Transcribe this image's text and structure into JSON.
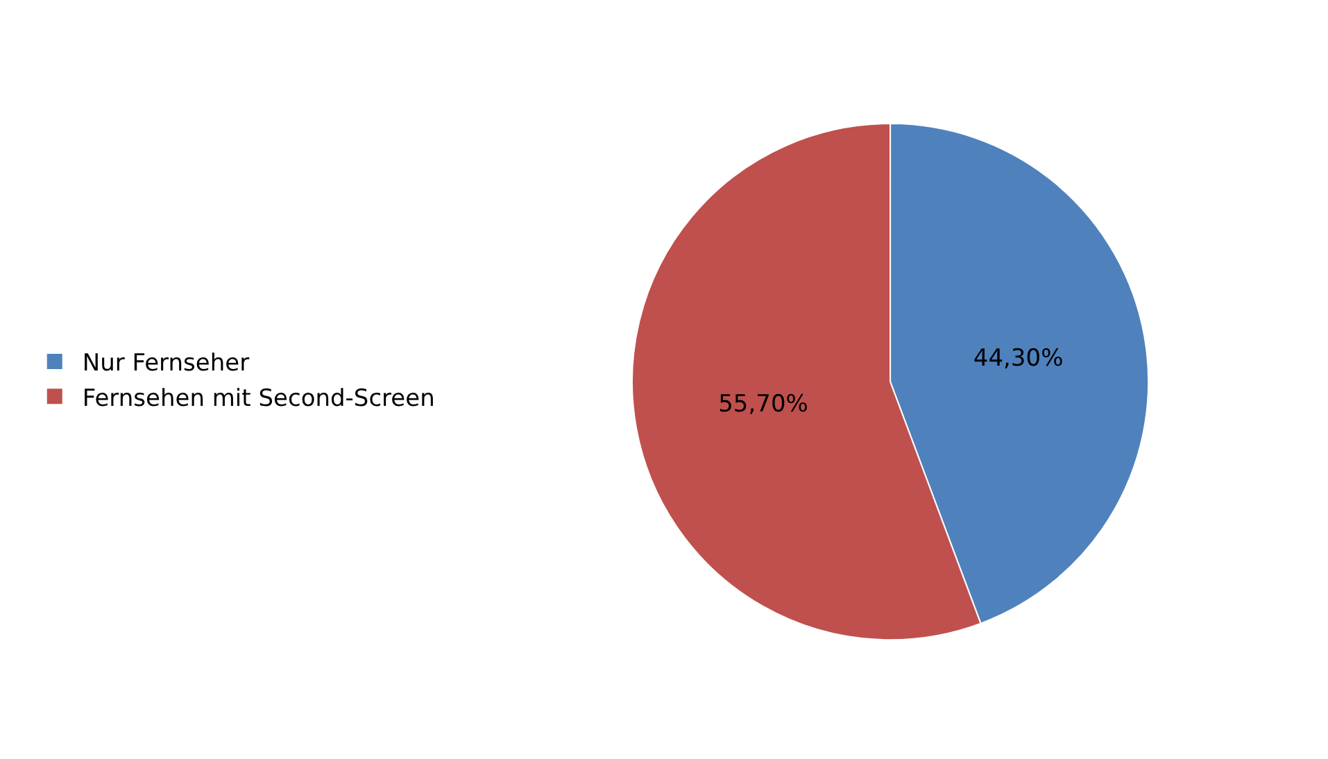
{
  "chart_data": {
    "type": "pie",
    "categories": [
      "Nur Fernseher",
      "Fernsehen mit Second-Screen"
    ],
    "values": [
      44.3,
      55.7
    ],
    "value_labels": [
      "44,30%",
      "55,70%"
    ],
    "colors": [
      "#4f81bd",
      "#c0504d"
    ],
    "legend": "left"
  }
}
